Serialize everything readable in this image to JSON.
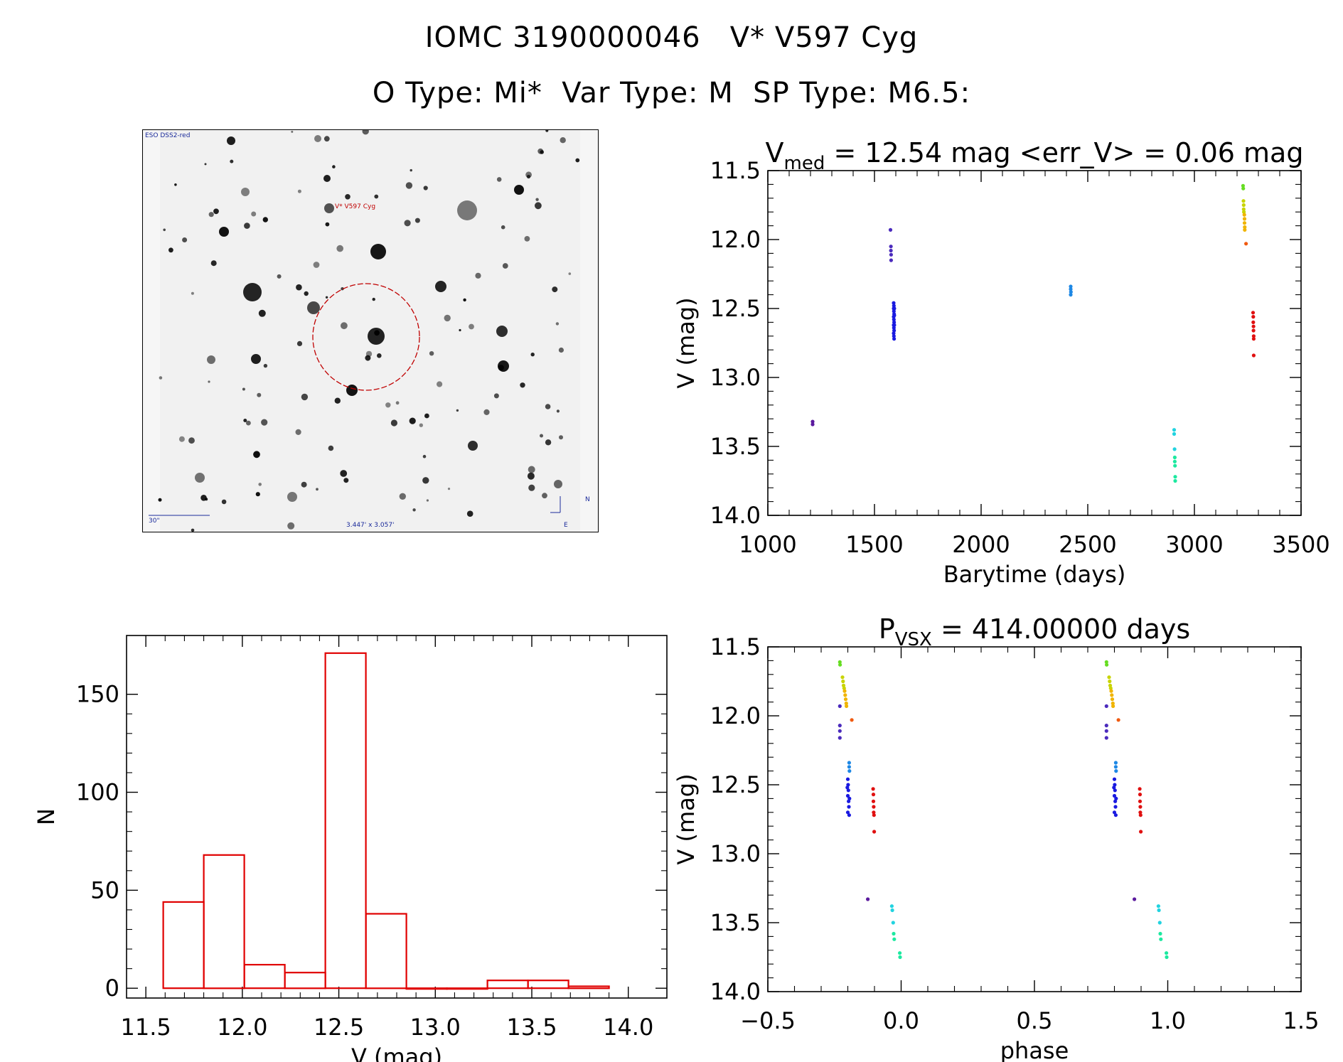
{
  "header": {
    "line1": "IOMC 3190000046   V* V597 Cyg",
    "line2": "O Type: Mi*  Var Type: M  SP Type: M6.5:"
  },
  "finder": {
    "survey": "ESO DSS2-red",
    "target": "V* V597 Cyg",
    "scale": "30\"",
    "fov": "3.447' x 3.057'",
    "north": "N",
    "east": "E",
    "circle_color": "#c00000"
  },
  "chart_data": [
    {
      "id": "lightcurve",
      "type": "scatter",
      "title_main": "V",
      "title_sub": "med",
      "title_rest": " = 12.54 mag <err_V> = 0.06 mag",
      "xlabel": "Barytime (days)",
      "ylabel": "V (mag)",
      "xlim": [
        1000,
        3500
      ],
      "ylim": [
        14.0,
        11.5
      ],
      "y_inverted": true,
      "xticks": [
        1000,
        1500,
        2000,
        2500,
        3000,
        3500
      ],
      "yticks": [
        11.5,
        12.0,
        12.5,
        13.0,
        13.5,
        14.0
      ],
      "xtick_labels": [
        "1000",
        "1500",
        "2000",
        "2500",
        "3000",
        "3500"
      ],
      "ytick_labels": [
        "11.5",
        "12.0",
        "12.5",
        "13.0",
        "13.5",
        "14.0"
      ],
      "series": [
        {
          "color": "#5b1a9e",
          "points": [
            [
              1210,
              13.32
            ],
            [
              1210,
              13.34
            ]
          ]
        },
        {
          "color": "#4b2bbd",
          "points": [
            [
              1575,
              11.93
            ],
            [
              1577,
              12.05
            ],
            [
              1577,
              12.08
            ],
            [
              1578,
              12.11
            ],
            [
              1578,
              12.15
            ]
          ]
        },
        {
          "color": "#1a1ae0",
          "points": [
            [
              1590,
              12.46
            ],
            [
              1591,
              12.48
            ],
            [
              1590,
              12.5
            ],
            [
              1591,
              12.52
            ],
            [
              1592,
              12.54
            ],
            [
              1590,
              12.56
            ],
            [
              1591,
              12.58
            ],
            [
              1592,
              12.6
            ],
            [
              1590,
              12.62
            ],
            [
              1591,
              12.64
            ],
            [
              1592,
              12.66
            ],
            [
              1590,
              12.68
            ],
            [
              1591,
              12.7
            ],
            [
              1592,
              12.72
            ],
            [
              1593,
              12.5
            ],
            [
              1593,
              12.55
            ],
            [
              1593,
              12.62
            ]
          ]
        },
        {
          "color": "#1e88e5",
          "points": [
            [
              2420,
              12.34
            ],
            [
              2420,
              12.36
            ],
            [
              2421,
              12.38
            ],
            [
              2420,
              12.4
            ]
          ]
        },
        {
          "color": "#22d3e0",
          "points": [
            [
              2905,
              13.38
            ],
            [
              2905,
              13.41
            ],
            [
              2907,
              13.52
            ]
          ]
        },
        {
          "color": "#1de9a0",
          "points": [
            [
              2908,
              13.58
            ],
            [
              2908,
              13.61
            ],
            [
              2909,
              13.64
            ],
            [
              2910,
              13.72
            ],
            [
              2910,
              13.75
            ]
          ]
        },
        {
          "color": "#66dd22",
          "points": [
            [
              3228,
              11.61
            ],
            [
              3229,
              11.63
            ]
          ]
        },
        {
          "color": "#c8d400",
          "points": [
            [
              3230,
              11.72
            ],
            [
              3231,
              11.75
            ],
            [
              3231,
              11.78
            ],
            [
              3232,
              11.8
            ]
          ]
        },
        {
          "color": "#f0b400",
          "points": [
            [
              3234,
              11.82
            ],
            [
              3235,
              11.85
            ],
            [
              3235,
              11.88
            ],
            [
              3236,
              11.91
            ],
            [
              3236,
              11.93
            ]
          ]
        },
        {
          "color": "#f05a10",
          "points": [
            [
              3242,
              12.03
            ]
          ]
        },
        {
          "color": "#e01010",
          "points": [
            [
              3275,
              12.53
            ],
            [
              3276,
              12.56
            ],
            [
              3276,
              12.6
            ],
            [
              3277,
              12.63
            ],
            [
              3277,
              12.66
            ],
            [
              3278,
              12.7
            ],
            [
              3278,
              12.72
            ],
            [
              3278,
              12.84
            ]
          ]
        }
      ]
    },
    {
      "id": "histogram",
      "type": "bar",
      "xlabel": "V (mag)",
      "ylabel": "N",
      "xlim": [
        11.4,
        14.2
      ],
      "ylim": [
        -5,
        180
      ],
      "xticks": [
        11.5,
        12.0,
        12.5,
        13.0,
        13.5,
        14.0
      ],
      "yticks": [
        0,
        50,
        100,
        150
      ],
      "xtick_labels": [
        "11.5",
        "12.0",
        "12.5",
        "13.0",
        "13.5",
        "14.0"
      ],
      "ytick_labels": [
        "0",
        "50",
        "100",
        "150"
      ],
      "bar_color": "#e00000",
      "bins": [
        {
          "x0": 11.59,
          "x1": 11.8,
          "n": 44
        },
        {
          "x0": 11.8,
          "x1": 12.01,
          "n": 68
        },
        {
          "x0": 12.01,
          "x1": 12.22,
          "n": 12
        },
        {
          "x0": 12.22,
          "x1": 12.43,
          "n": 8
        },
        {
          "x0": 12.43,
          "x1": 12.64,
          "n": 171
        },
        {
          "x0": 12.64,
          "x1": 12.85,
          "n": 38
        },
        {
          "x0": 12.85,
          "x1": 13.06,
          "n": 0
        },
        {
          "x0": 13.06,
          "x1": 13.27,
          "n": 0
        },
        {
          "x0": 13.27,
          "x1": 13.48,
          "n": 4
        },
        {
          "x0": 13.48,
          "x1": 13.69,
          "n": 4
        },
        {
          "x0": 13.69,
          "x1": 13.9,
          "n": 1
        }
      ]
    },
    {
      "id": "phased",
      "type": "scatter",
      "title_main": "P",
      "title_sub": "VSX",
      "title_rest": " = 414.00000 days",
      "xlabel": "phase",
      "ylabel": "V (mag)",
      "xlim": [
        -0.5,
        1.5
      ],
      "ylim": [
        14.0,
        11.5
      ],
      "y_inverted": true,
      "xticks": [
        -0.5,
        0.0,
        0.5,
        1.0,
        1.5
      ],
      "yticks": [
        11.5,
        12.0,
        12.5,
        13.0,
        13.5,
        14.0
      ],
      "xtick_labels": [
        "−0.5",
        "0.0",
        "0.5",
        "1.0",
        "1.5"
      ],
      "ytick_labels": [
        "11.5",
        "12.0",
        "12.5",
        "13.0",
        "13.5",
        "14.0"
      ],
      "series": [
        {
          "color": "#5b1a9e",
          "points": [
            [
              -0.125,
              13.33
            ],
            [
              0.875,
              13.33
            ]
          ]
        },
        {
          "color": "#4b2bbd",
          "points": [
            [
              -0.23,
              11.93
            ],
            [
              -0.23,
              12.07
            ],
            [
              -0.23,
              12.11
            ],
            [
              -0.23,
              12.16
            ],
            [
              0.77,
              11.93
            ],
            [
              0.77,
              12.07
            ],
            [
              0.77,
              12.11
            ],
            [
              0.77,
              12.16
            ]
          ]
        },
        {
          "color": "#1a1ae0",
          "points": [
            [
              -0.2,
              12.46
            ],
            [
              -0.199,
              12.5
            ],
            [
              -0.198,
              12.54
            ],
            [
              -0.2,
              12.58
            ],
            [
              -0.197,
              12.62
            ],
            [
              -0.196,
              12.66
            ],
            [
              -0.2,
              12.7
            ],
            [
              -0.195,
              12.72
            ],
            [
              -0.202,
              12.52
            ],
            [
              -0.194,
              12.6
            ],
            [
              0.8,
              12.46
            ],
            [
              0.801,
              12.5
            ],
            [
              0.802,
              12.54
            ],
            [
              0.8,
              12.58
            ],
            [
              0.803,
              12.62
            ],
            [
              0.804,
              12.66
            ],
            [
              0.8,
              12.7
            ],
            [
              0.805,
              12.72
            ],
            [
              0.798,
              12.52
            ],
            [
              0.806,
              12.6
            ]
          ]
        },
        {
          "color": "#1e88e5",
          "points": [
            [
              -0.195,
              12.34
            ],
            [
              -0.195,
              12.37
            ],
            [
              -0.194,
              12.4
            ],
            [
              0.805,
              12.34
            ],
            [
              0.805,
              12.37
            ],
            [
              0.806,
              12.4
            ]
          ]
        },
        {
          "color": "#22d3e0",
          "points": [
            [
              -0.035,
              13.38
            ],
            [
              -0.033,
              13.41
            ],
            [
              -0.03,
              13.5
            ],
            [
              0.965,
              13.38
            ],
            [
              0.967,
              13.41
            ],
            [
              0.97,
              13.5
            ]
          ]
        },
        {
          "color": "#1de9a0",
          "points": [
            [
              -0.028,
              13.58
            ],
            [
              -0.026,
              13.62
            ],
            [
              -0.005,
              13.72
            ],
            [
              -0.004,
              13.75
            ],
            [
              0.972,
              13.58
            ],
            [
              0.974,
              13.62
            ],
            [
              0.995,
              13.72
            ],
            [
              0.996,
              13.75
            ]
          ]
        },
        {
          "color": "#66dd22",
          "points": [
            [
              -0.23,
              11.61
            ],
            [
              -0.229,
              11.63
            ],
            [
              0.77,
              11.61
            ],
            [
              0.771,
              11.63
            ]
          ]
        },
        {
          "color": "#c8d400",
          "points": [
            [
              -0.22,
              11.72
            ],
            [
              -0.218,
              11.75
            ],
            [
              -0.216,
              11.78
            ],
            [
              -0.214,
              11.8
            ],
            [
              0.78,
              11.72
            ],
            [
              0.782,
              11.75
            ],
            [
              0.784,
              11.78
            ],
            [
              0.786,
              11.8
            ]
          ]
        },
        {
          "color": "#f0b400",
          "points": [
            [
              -0.212,
              11.82
            ],
            [
              -0.21,
              11.85
            ],
            [
              -0.208,
              11.88
            ],
            [
              -0.206,
              11.91
            ],
            [
              -0.205,
              11.93
            ],
            [
              0.788,
              11.82
            ],
            [
              0.79,
              11.85
            ],
            [
              0.792,
              11.88
            ],
            [
              0.794,
              11.91
            ],
            [
              0.795,
              11.93
            ]
          ]
        },
        {
          "color": "#f05a10",
          "points": [
            [
              -0.185,
              12.03
            ],
            [
              0.815,
              12.03
            ]
          ]
        },
        {
          "color": "#e01010",
          "points": [
            [
              -0.105,
              12.53
            ],
            [
              -0.104,
              12.57
            ],
            [
              -0.104,
              12.62
            ],
            [
              -0.103,
              12.66
            ],
            [
              -0.103,
              12.7
            ],
            [
              -0.102,
              12.72
            ],
            [
              -0.101,
              12.84
            ],
            [
              0.895,
              12.53
            ],
            [
              0.896,
              12.57
            ],
            [
              0.896,
              12.62
            ],
            [
              0.897,
              12.66
            ],
            [
              0.897,
              12.7
            ],
            [
              0.898,
              12.72
            ],
            [
              0.899,
              12.84
            ]
          ]
        }
      ]
    }
  ]
}
